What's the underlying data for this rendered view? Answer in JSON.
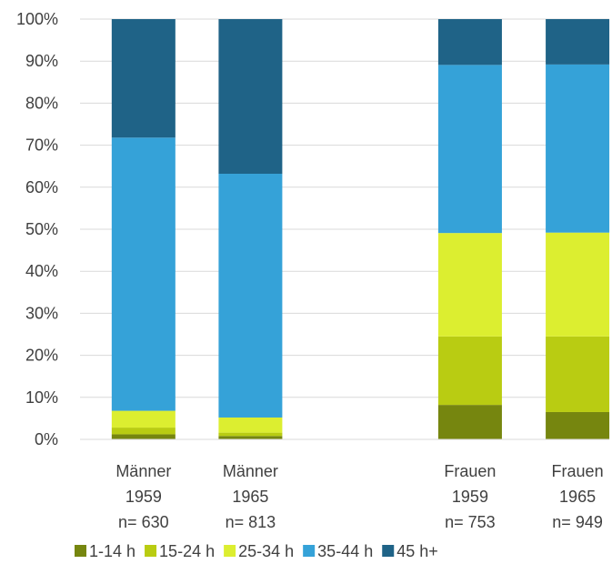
{
  "chart_data": {
    "type": "bar",
    "stacked": true,
    "normalized_percent": true,
    "categories": [
      [
        "Männer",
        "1959",
        "n= 630"
      ],
      [
        "Männer",
        "1965",
        "n= 813"
      ],
      [
        "Frauen",
        "1959",
        "n= 753"
      ],
      [
        "Frauen",
        "1965",
        "n= 949"
      ]
    ],
    "series": [
      {
        "name": "1-14 h",
        "color": "#76860f",
        "values": [
          1.2,
          0.8,
          8.2,
          6.5
        ]
      },
      {
        "name": "15-24 h",
        "color": "#b9cc12",
        "values": [
          1.6,
          0.8,
          16.3,
          18.0
        ]
      },
      {
        "name": "25-34 h",
        "color": "#dcee30",
        "values": [
          4.0,
          3.6,
          24.6,
          24.7
        ]
      },
      {
        "name": "35-44 h",
        "color": "#35a2d8",
        "values": [
          65.0,
          58.0,
          40.0,
          40.0
        ]
      },
      {
        "name": "45 h+",
        "color": "#1f6387",
        "values": [
          28.2,
          36.8,
          10.9,
          10.8
        ]
      }
    ],
    "ylim": [
      0,
      100
    ],
    "yticks": [
      "0%",
      "10%",
      "20%",
      "30%",
      "40%",
      "50%",
      "60%",
      "70%",
      "80%",
      "90%",
      "100%"
    ],
    "grid": true,
    "legend_position": "bottom"
  }
}
